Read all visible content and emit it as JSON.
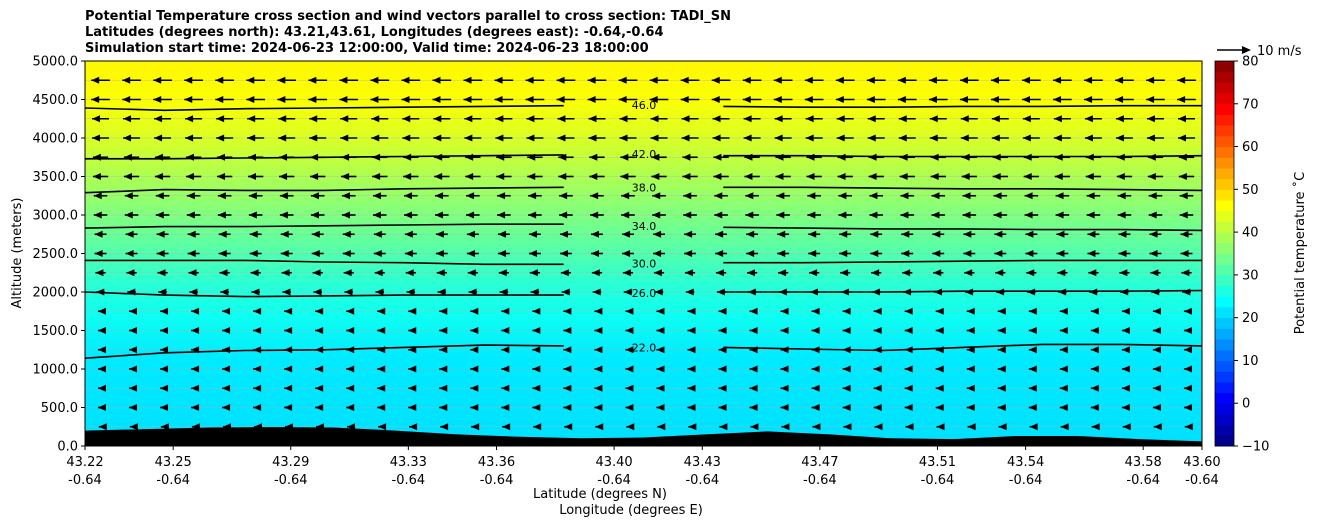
{
  "chart_data": {
    "type": "heatmap",
    "title": [
      "Potential Temperature cross section and wind vectors parallel to cross section: TADI_SN",
      "Latitudes (degrees north): 43.21,43.61, Longitudes (degrees east): -0.64,-0.64",
      "Simulation start time: 2024-06-23 12:00:00, Valid time: 2024-06-23 18:00:00"
    ],
    "xlabel": [
      "Latitude (degrees N)",
      "Longitude (degrees E)"
    ],
    "ylabel": "Altitude (meters)",
    "xlim": [
      43.22,
      43.6
    ],
    "ylim": [
      0,
      5000
    ],
    "x_ticks": [
      {
        "lat": "43.22",
        "lon": "-0.64",
        "value": 43.22
      },
      {
        "lat": "43.25",
        "lon": "-0.64",
        "value": 43.25
      },
      {
        "lat": "43.29",
        "lon": "-0.64",
        "value": 43.29
      },
      {
        "lat": "43.33",
        "lon": "-0.64",
        "value": 43.33
      },
      {
        "lat": "43.36",
        "lon": "-0.64",
        "value": 43.36
      },
      {
        "lat": "43.40",
        "lon": "-0.64",
        "value": 43.4
      },
      {
        "lat": "43.43",
        "lon": "-0.64",
        "value": 43.43
      },
      {
        "lat": "43.47",
        "lon": "-0.64",
        "value": 43.47
      },
      {
        "lat": "43.51",
        "lon": "-0.64",
        "value": 43.51
      },
      {
        "lat": "43.54",
        "lon": "-0.64",
        "value": 43.54
      },
      {
        "lat": "43.58",
        "lon": "-0.64",
        "value": 43.58
      },
      {
        "lat": "43.60",
        "lon": "-0.64",
        "value": 43.6
      }
    ],
    "y_ticks": [
      "0.0",
      "500.0",
      "1000.0",
      "1500.0",
      "2000.0",
      "2500.0",
      "3000.0",
      "3500.0",
      "4000.0",
      "4500.0",
      "5000.0"
    ],
    "colorbar": {
      "label": "Potential temperature ˚C",
      "min": -10,
      "max": 80,
      "ticks": [
        "−10",
        "0",
        "10",
        "20",
        "30",
        "40",
        "50",
        "60",
        "70",
        "80"
      ],
      "colormap": "jet"
    },
    "contours": [
      {
        "label": "22.0",
        "level": 22,
        "altitudes": [
          1140,
          1210,
          1240,
          1250,
          1280,
          1310,
          1300,
          1280,
          1280,
          1260,
          1240,
          1280,
          1320,
          1320,
          1300
        ]
      },
      {
        "label": "26.0",
        "level": 26,
        "altitudes": [
          2000,
          1960,
          1940,
          1950,
          1960,
          1960,
          1960,
          1990,
          2000,
          2000,
          2000,
          2010,
          2010,
          2010,
          2020
        ]
      },
      {
        "label": "30.0",
        "level": 30,
        "altitudes": [
          2410,
          2410,
          2410,
          2390,
          2380,
          2360,
          2360,
          2370,
          2380,
          2380,
          2390,
          2400,
          2410,
          2410,
          2410
        ]
      },
      {
        "label": "34.0",
        "level": 34,
        "altitudes": [
          2830,
          2850,
          2850,
          2860,
          2870,
          2880,
          2880,
          2860,
          2840,
          2830,
          2820,
          2820,
          2810,
          2810,
          2800
        ]
      },
      {
        "label": "38.0",
        "level": 38,
        "altitudes": [
          3290,
          3330,
          3320,
          3320,
          3340,
          3350,
          3360,
          3360,
          3360,
          3360,
          3350,
          3340,
          3340,
          3330,
          3320
        ]
      },
      {
        "label": "42.0",
        "level": 42,
        "altitudes": [
          3730,
          3730,
          3740,
          3750,
          3760,
          3770,
          3780,
          3790,
          3770,
          3770,
          3760,
          3760,
          3760,
          3760,
          3770
        ]
      },
      {
        "label": "46.0",
        "level": 46,
        "altitudes": [
          4390,
          4360,
          4380,
          4390,
          4400,
          4410,
          4420,
          4430,
          4410,
          4400,
          4400,
          4410,
          4410,
          4420,
          4420
        ]
      }
    ],
    "temperature_bands": [
      {
        "altitude": 0,
        "temp": 21
      },
      {
        "altitude": 1150,
        "temp": 22
      },
      {
        "altitude": 1700,
        "temp": 25
      },
      {
        "altitude": 2050,
        "temp": 27
      },
      {
        "altitude": 2500,
        "temp": 31
      },
      {
        "altitude": 3000,
        "temp": 35
      },
      {
        "altitude": 3500,
        "temp": 39
      },
      {
        "altitude": 4000,
        "temp": 43
      },
      {
        "altitude": 4500,
        "temp": 46
      },
      {
        "altitude": 5000,
        "temp": 47
      }
    ],
    "terrain_altitudes": [
      200,
      220,
      240,
      245,
      240,
      200,
      150,
      120,
      100,
      110,
      150,
      190,
      150,
      100,
      90,
      130,
      130,
      90,
      60
    ],
    "vector_key": {
      "label": "10 m/s",
      "speed": 10
    },
    "wind_levels": [
      {
        "altitude": 4750,
        "u": -5.5
      },
      {
        "altitude": 4500,
        "u": -5.5
      },
      {
        "altitude": 4250,
        "u": -5.0
      },
      {
        "altitude": 4000,
        "u": -5.0
      },
      {
        "altitude": 3750,
        "u": -4.5
      },
      {
        "altitude": 3500,
        "u": -4.5
      },
      {
        "altitude": 3250,
        "u": -4.0
      },
      {
        "altitude": 3000,
        "u": -4.0
      },
      {
        "altitude": 2750,
        "u": -3.5
      },
      {
        "altitude": 2500,
        "u": -3.5
      },
      {
        "altitude": 2250,
        "u": -3.0
      },
      {
        "altitude": 2000,
        "u": -2.5
      },
      {
        "altitude": 1750,
        "u": -1.5
      },
      {
        "altitude": 1500,
        "u": -1.5
      },
      {
        "altitude": 1250,
        "u": -1.5
      },
      {
        "altitude": 1000,
        "u": -1.5
      },
      {
        "altitude": 750,
        "u": -1.5
      },
      {
        "altitude": 500,
        "u": -1.5
      },
      {
        "altitude": 250,
        "u": -1.0
      }
    ]
  }
}
